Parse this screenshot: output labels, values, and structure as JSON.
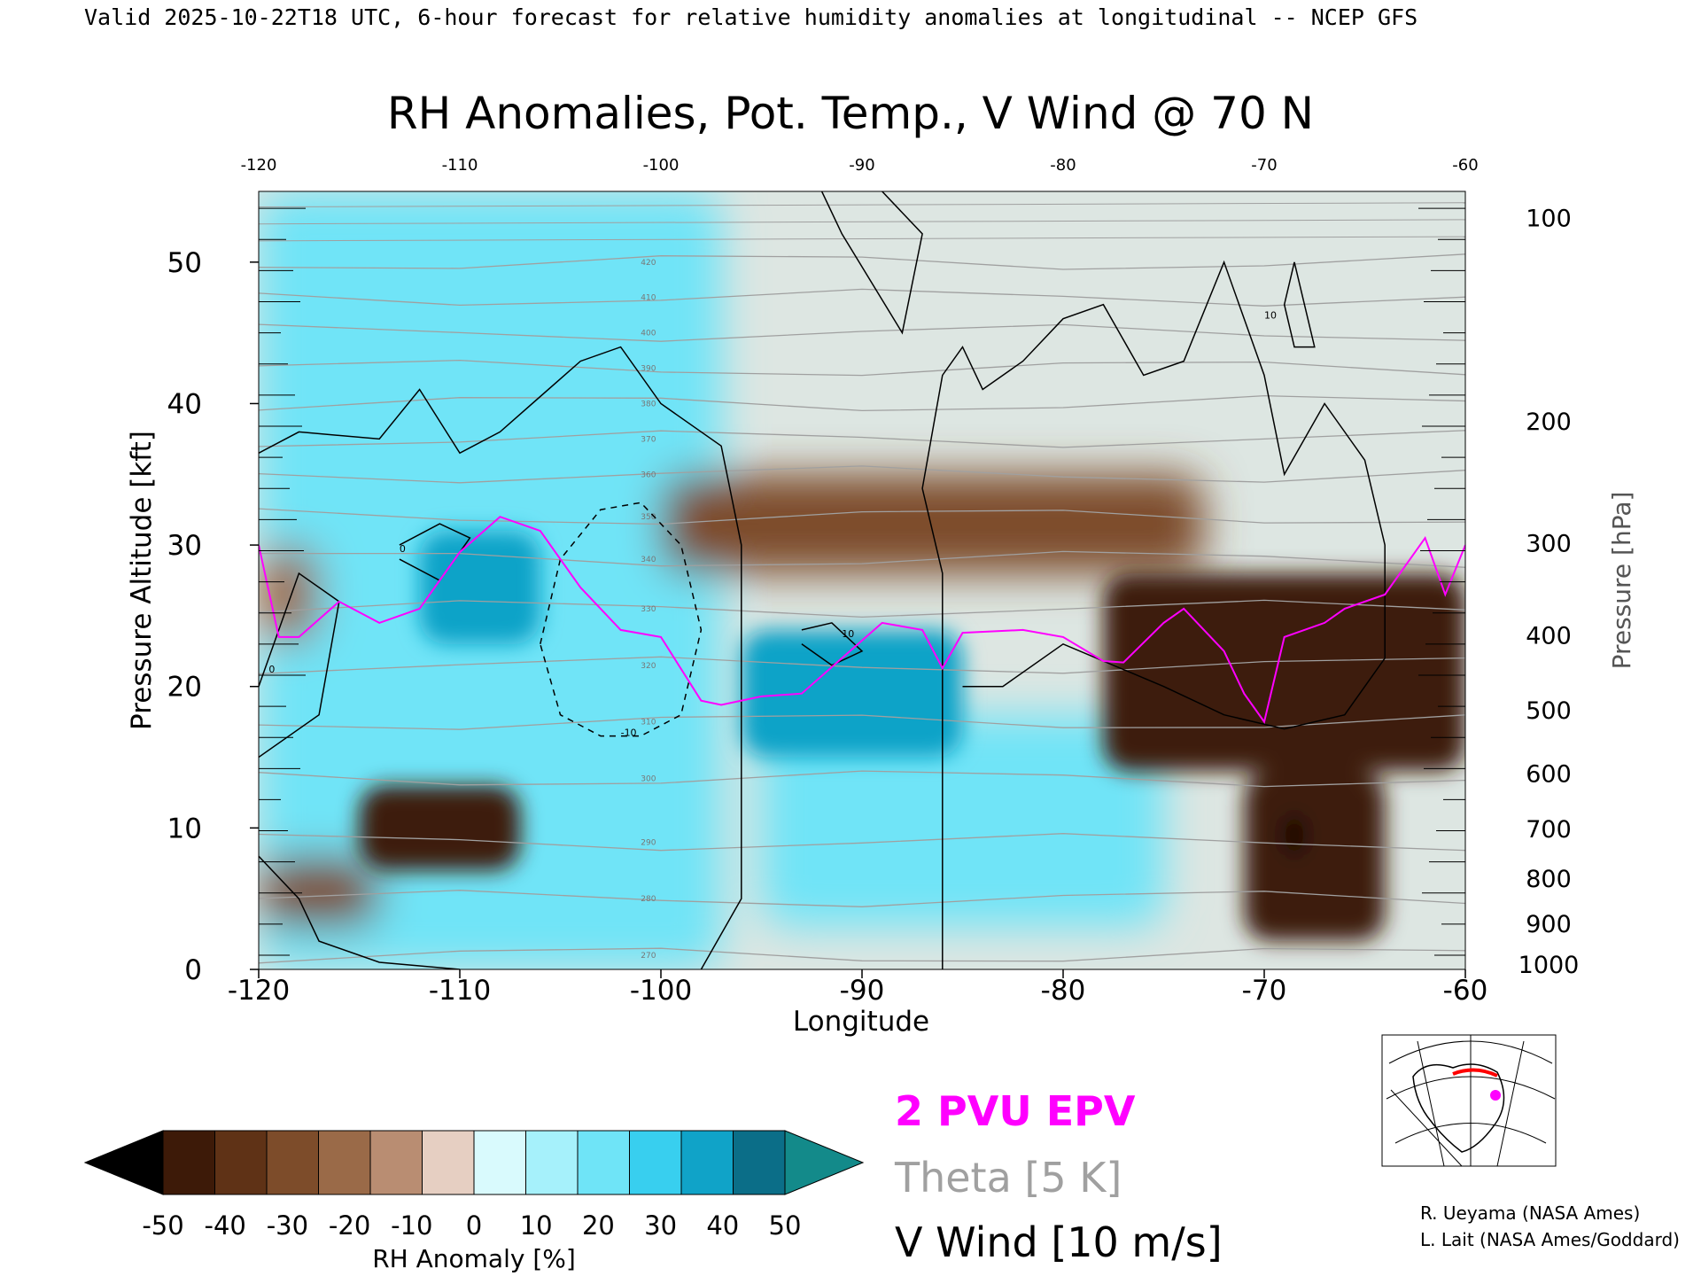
{
  "header": "Valid 2025-10-22T18 UTC, 6-hour forecast for relative humidity anomalies at longitudinal -- NCEP GFS",
  "title": "RH Anomalies, Pot. Temp., V Wind @ 70 N",
  "chart_data": {
    "type": "heatmap",
    "xlabel": "Longitude",
    "ylabel": "Pressure Altitude [kft]",
    "y2label": "Pressure [hPa]",
    "xlim": [
      -120,
      -60
    ],
    "ylim": [
      0,
      55
    ],
    "x_ticks": [
      "-120",
      "-110",
      "-100",
      "-90",
      "-80",
      "-70",
      "-60"
    ],
    "x_tick_values": [
      -120,
      -110,
      -100,
      -90,
      -80,
      -70,
      -60
    ],
    "x_top_ticks": [
      "-120",
      "-110",
      "-100",
      "-90",
      "-80",
      "-70",
      "-60"
    ],
    "y_ticks": [
      "0",
      "10",
      "20",
      "30",
      "40",
      "50"
    ],
    "y_tick_values": [
      0,
      10,
      20,
      30,
      40,
      50
    ],
    "pressure_ticks": [
      "100",
      "200",
      "300",
      "400",
      "500",
      "600",
      "700",
      "800",
      "900",
      "1000"
    ],
    "pressure_kft": [
      53.1,
      38.7,
      30.1,
      23.6,
      18.3,
      13.8,
      9.9,
      6.4,
      3.2,
      0.3
    ],
    "grid": false,
    "colorbar": {
      "label": "RH Anomaly [%]",
      "ticks": [
        "-50",
        "-40",
        "-30",
        "-20",
        "-10",
        "0",
        "10",
        "20",
        "30",
        "40",
        "50"
      ],
      "colors": [
        "#3d1a08",
        "#5f3216",
        "#7d4c2a",
        "#9a6a48",
        "#b98d72",
        "#e6cfc2",
        "#d9fafd",
        "#a6f1fb",
        "#6fe4f7",
        "#38cfef",
        "#10a3c8",
        "#0b6e88"
      ],
      "under_color": "#000000",
      "over_color": "#138a8a"
    },
    "rh_anomaly_features": [
      {
        "type": "moist",
        "lon": [
          -120,
          -97
        ],
        "kft": [
          0,
          55
        ],
        "value": 20
      },
      {
        "type": "moist",
        "lon": [
          -112,
          -106
        ],
        "kft": [
          23,
          31
        ],
        "value": 40
      },
      {
        "type": "moist",
        "lon": [
          -96,
          -85
        ],
        "kft": [
          15,
          24
        ],
        "value": 45
      },
      {
        "type": "moist",
        "lon": [
          -95,
          -75
        ],
        "kft": [
          3,
          18
        ],
        "value": 20
      },
      {
        "type": "dry",
        "lon": [
          -100,
          -73
        ],
        "kft": [
          28,
          35
        ],
        "value": -25
      },
      {
        "type": "dry",
        "lon": [
          -115,
          -107
        ],
        "kft": [
          7,
          13
        ],
        "value": -45
      },
      {
        "type": "dry",
        "lon": [
          -120,
          -114
        ],
        "kft": [
          3,
          8
        ],
        "value": -25
      },
      {
        "type": "dry",
        "lon": [
          -120,
          -117
        ],
        "kft": [
          23,
          30
        ],
        "value": -20
      },
      {
        "type": "dry",
        "lon": [
          -78,
          -60
        ],
        "kft": [
          14,
          28
        ],
        "value": -45
      },
      {
        "type": "dry",
        "lon": [
          -71,
          -64
        ],
        "kft": [
          2,
          14
        ],
        "value": -45
      },
      {
        "type": "dry",
        "lon": [
          -69,
          -68
        ],
        "kft": [
          8,
          11
        ],
        "value": -55
      }
    ],
    "theta_labels": [
      "270",
      "280",
      "290",
      "300",
      "310",
      "320",
      "330",
      "340",
      "350",
      "360",
      "370",
      "380",
      "390",
      "400",
      "410",
      "420"
    ],
    "theta_interval_K": 5,
    "vwind_labels": [
      "0",
      "10",
      "-10"
    ],
    "vwind_interval": 10,
    "epv_2pvu": {
      "lon": [
        -120,
        -119,
        -118,
        -116,
        -114,
        -112,
        -110,
        -108,
        -106,
        -104,
        -102,
        -100,
        -98,
        -97,
        -95,
        -93,
        -91,
        -89,
        -87,
        -86,
        -85,
        -82,
        -80,
        -78,
        -77,
        -75,
        -74,
        -72,
        -71,
        -70,
        -69,
        -67,
        -66,
        -64,
        -62,
        -61,
        -60
      ],
      "kft": [
        30,
        23.5,
        23.5,
        26,
        24.5,
        25.5,
        29.5,
        32,
        31,
        27,
        24,
        23.5,
        19,
        18.7,
        19.3,
        19.5,
        22,
        24.5,
        24,
        21.3,
        23.8,
        24,
        23.5,
        21.8,
        21.7,
        24.5,
        25.5,
        22.5,
        19.5,
        17.5,
        23.5,
        24.5,
        25.5,
        26.5,
        30.5,
        26.5,
        30
      ]
    },
    "legend": [
      "2 PVU EPV",
      "Theta [5 K]",
      "V Wind [10 m/s]"
    ]
  },
  "colors": {
    "epv": "#ff00ff",
    "theta": "#a0a0a0",
    "vwind": "#000000"
  },
  "credits": [
    "R. Ueyama (NASA Ames)",
    "L. Lait (NASA Ames/Goddard)"
  ]
}
